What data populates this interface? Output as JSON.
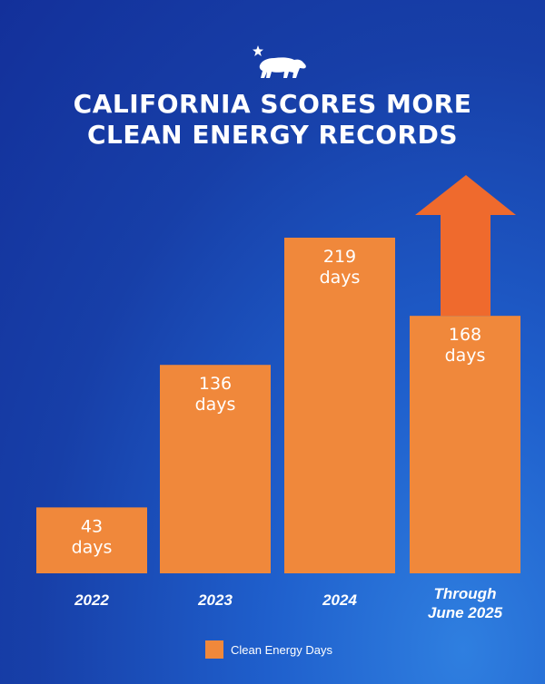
{
  "header": {
    "title_line_1": "CALIFORNIA SCORES MORE",
    "title_line_2": "CLEAN ENERGY RECORDS",
    "logo_icon": "bear-star-icon"
  },
  "colors": {
    "bar": "#f0883b",
    "arrow": "#ef6a2d",
    "text": "#ffffff"
  },
  "chart_data": {
    "type": "bar",
    "title": "CALIFORNIA SCORES MORE CLEAN ENERGY RECORDS",
    "categories": [
      [
        "2022"
      ],
      [
        "2023"
      ],
      [
        "2024"
      ],
      [
        "Through",
        "June 2025"
      ]
    ],
    "series": [
      {
        "name": "Clean Energy Days",
        "values": [
          43,
          136,
          219,
          168
        ],
        "labels": [
          [
            "43",
            "days"
          ],
          [
            "136",
            "days"
          ],
          [
            "219",
            "days"
          ],
          [
            "168",
            "days"
          ]
        ]
      }
    ],
    "annotations": [
      {
        "type": "arrow-up",
        "category_index": 3,
        "meaning": "trend continuing upward"
      }
    ],
    "ylim": [
      0,
      219
    ],
    "grid": false,
    "legend": "bottom-center"
  },
  "legend": {
    "label": "Clean Energy Days"
  }
}
